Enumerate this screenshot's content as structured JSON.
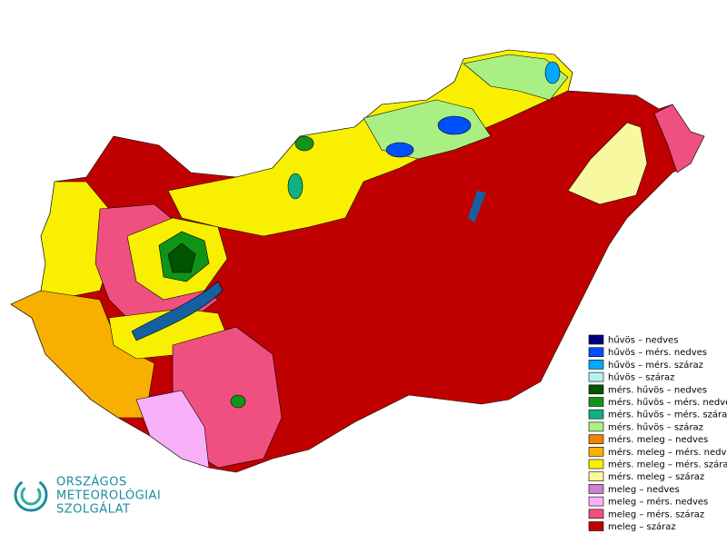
{
  "legend": {
    "items": [
      {
        "label": "hűvös – nedves",
        "color": "#00007f"
      },
      {
        "label": "hűvös – mérs. nedves",
        "color": "#0050ff"
      },
      {
        "label": "hűvös – mérs. száraz",
        "color": "#00a8ff"
      },
      {
        "label": "hűvös – száraz",
        "color": "#b4f4f0"
      },
      {
        "label": "mérs. hűvös – nedves",
        "color": "#005400"
      },
      {
        "label": "mérs. hűvös – mérs. nedves",
        "color": "#109418"
      },
      {
        "label": "mérs. hűvös – mérs. száraz",
        "color": "#10b080"
      },
      {
        "label": "mérs. hűvös – száraz",
        "color": "#a8f084"
      },
      {
        "label": "mérs. meleg – nedves",
        "color": "#f08400"
      },
      {
        "label": "mérs. meleg – mérs. nedves",
        "color": "#f8b000"
      },
      {
        "label": "mérs. meleg – mérs. száraz",
        "color": "#f8f000"
      },
      {
        "label": "mérs. meleg – száraz",
        "color": "#f8f8a0"
      },
      {
        "label": "meleg – nedves",
        "color": "#d080d0"
      },
      {
        "label": "meleg – mérs. nedves",
        "color": "#f8b0f8"
      },
      {
        "label": "meleg – mérs. száraz",
        "color": "#f05080"
      },
      {
        "label": "meleg – száraz",
        "color": "#c00000"
      }
    ]
  },
  "logo": {
    "lines": [
      "ORSZÁGOS",
      "METEOROLÓGIAI",
      "SZOLGÁLAT"
    ]
  }
}
